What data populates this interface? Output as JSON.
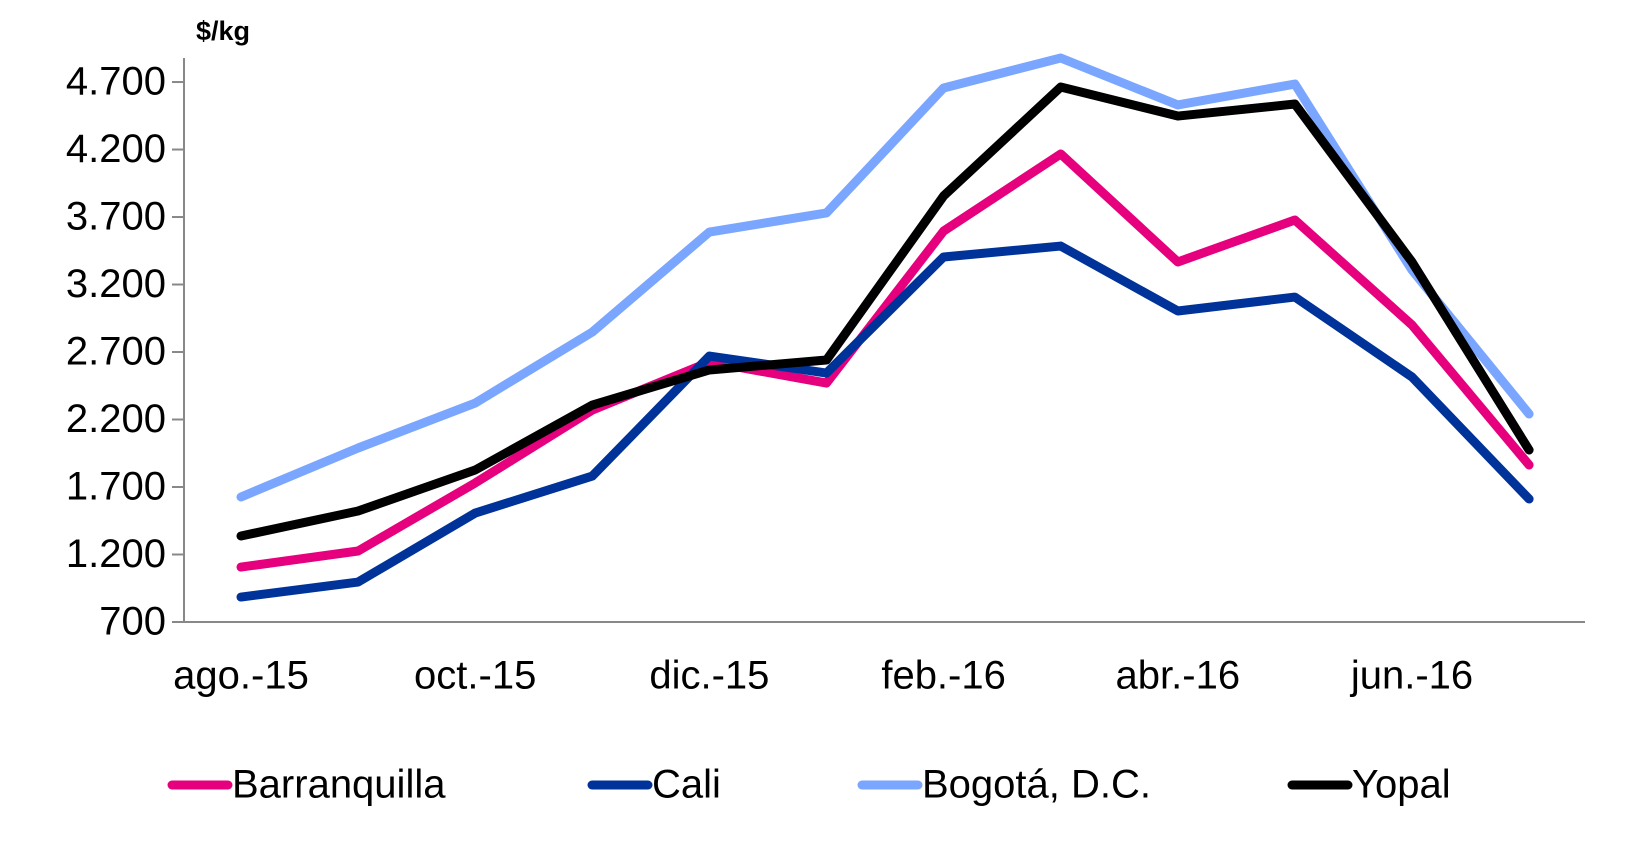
{
  "chart_data": {
    "type": "line",
    "y_label": "$/kg",
    "categories": [
      "ago.-15",
      null,
      "oct.-15",
      null,
      "dic.-15",
      null,
      "feb.-16",
      null,
      "abr.-16",
      null,
      "jun.-16",
      null
    ],
    "series": [
      {
        "name": "Barranquilla",
        "color": "#e6007e",
        "values": [
          1107,
          1226,
          1730,
          2270,
          2626,
          2470,
          3596,
          4167,
          3367,
          3678,
          2900,
          1863
        ]
      },
      {
        "name": "Cali",
        "color": "#003399",
        "values": [
          885,
          996,
          1507,
          1781,
          2670,
          2544,
          3404,
          3485,
          3004,
          3107,
          2515,
          1611
        ]
      },
      {
        "name": "Bogotá, D.C.",
        "color": "#7aa6ff",
        "values": [
          1626,
          1989,
          2322,
          2848,
          3589,
          3730,
          4656,
          4878,
          4530,
          4685,
          3307,
          2241
        ]
      },
      {
        "name": "Yopal",
        "color": "#000000",
        "values": [
          1337,
          1522,
          1826,
          2307,
          2567,
          2641,
          3856,
          4663,
          4448,
          4537,
          3367,
          1974
        ]
      }
    ],
    "ylim": [
      700,
      4878
    ],
    "yticks": [
      700,
      {
        "value": 1200,
        "label": "1.200"
      },
      {
        "value": 1700,
        "label": "1.700"
      },
      {
        "value": 2200,
        "label": "2.200"
      },
      {
        "value": 2700,
        "label": "2.700"
      },
      {
        "value": 3200,
        "label": "3.200"
      },
      {
        "value": 3700,
        "label": "3.700"
      },
      {
        "value": 4200,
        "label": "4.200"
      },
      {
        "value": 4700,
        "label": "4.700"
      }
    ],
    "legend": "bottom"
  }
}
